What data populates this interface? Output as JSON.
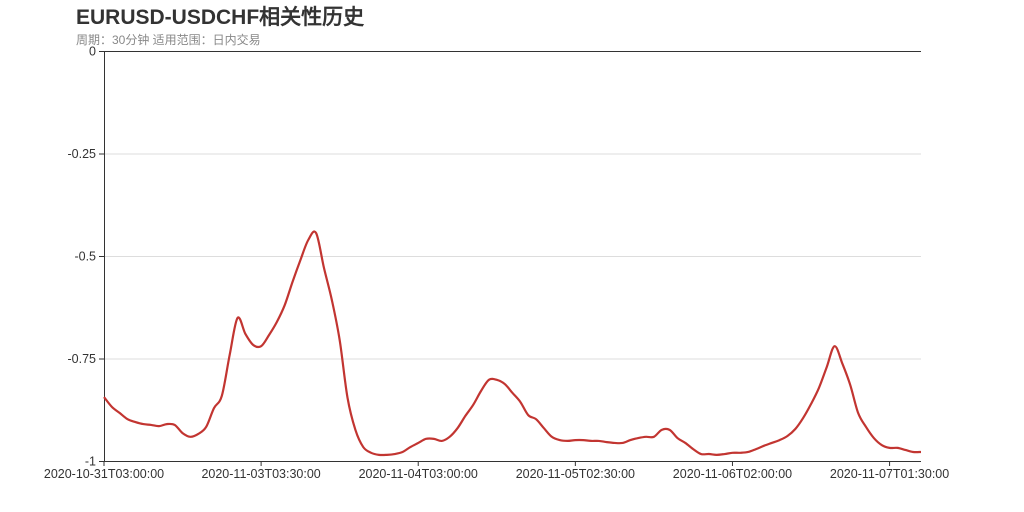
{
  "chart_data": {
    "type": "line",
    "title": "EURUSD-USDCHF相关性历史",
    "subtitle": "周期：30分钟 适用范围：日内交易",
    "xlabel": "",
    "ylabel": "",
    "ylim": [
      -1,
      0
    ],
    "y_ticks": [
      "0",
      "-0.25",
      "-0.5",
      "-0.75",
      "-1"
    ],
    "y_tick_values": [
      0,
      -0.25,
      -0.5,
      -0.75,
      -1
    ],
    "x_tick_labels": [
      "2020-10-31T03:00:00",
      "2020-11-03T03:30:00",
      "2020-11-04T03:00:00",
      "2020-11-05T02:30:00",
      "2020-11-06T02:00:00",
      "2020-11-07T01:30:00"
    ],
    "x_tick_every": 20,
    "grid": true,
    "line_color": "#c23531",
    "values": [
      -0.844,
      -0.868,
      -0.883,
      -0.898,
      -0.905,
      -0.91,
      -0.912,
      -0.915,
      -0.91,
      -0.912,
      -0.932,
      -0.941,
      -0.934,
      -0.917,
      -0.871,
      -0.841,
      -0.741,
      -0.651,
      -0.69,
      -0.717,
      -0.72,
      -0.693,
      -0.661,
      -0.62,
      -0.563,
      -0.51,
      -0.461,
      -0.444,
      -0.529,
      -0.607,
      -0.705,
      -0.846,
      -0.924,
      -0.966,
      -0.98,
      -0.985,
      -0.985,
      -0.983,
      -0.978,
      -0.966,
      -0.956,
      -0.946,
      -0.946,
      -0.951,
      -0.941,
      -0.92,
      -0.89,
      -0.863,
      -0.829,
      -0.802,
      -0.802,
      -0.812,
      -0.834,
      -0.856,
      -0.888,
      -0.898,
      -0.92,
      -0.941,
      -0.949,
      -0.951,
      -0.949,
      -0.949,
      -0.951,
      -0.951,
      -0.954,
      -0.956,
      -0.956,
      -0.949,
      -0.944,
      -0.941,
      -0.941,
      -0.924,
      -0.924,
      -0.944,
      -0.956,
      -0.971,
      -0.983,
      -0.983,
      -0.985,
      -0.983,
      -0.98,
      -0.98,
      -0.978,
      -0.971,
      -0.963,
      -0.956,
      -0.949,
      -0.939,
      -0.922,
      -0.895,
      -0.861,
      -0.822,
      -0.771,
      -0.72,
      -0.763,
      -0.815,
      -0.883,
      -0.917,
      -0.944,
      -0.961,
      -0.968,
      -0.968,
      -0.973,
      -0.978,
      -0.978
    ]
  }
}
